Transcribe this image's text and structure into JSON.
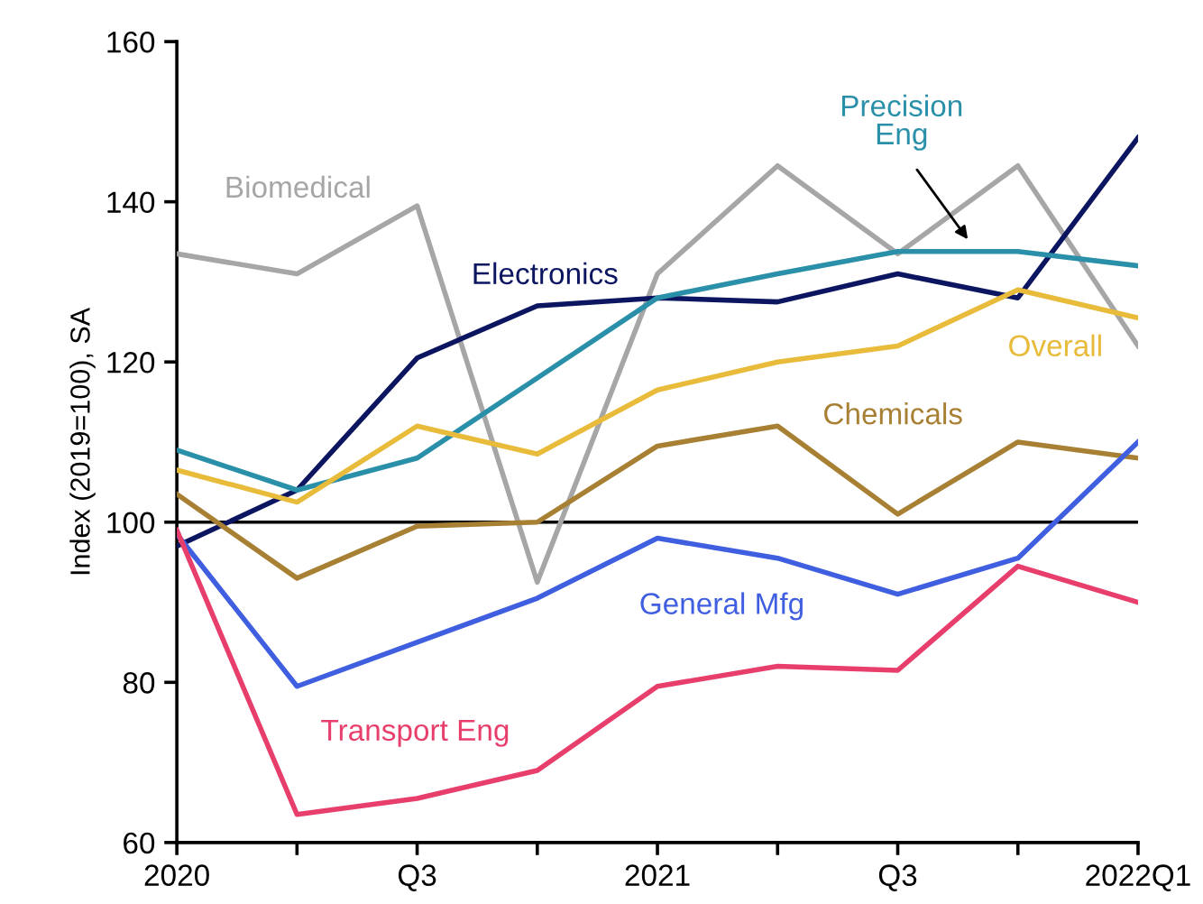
{
  "chart_data": {
    "type": "line",
    "ylabel": "Index (2019=100), SA",
    "categories": [
      "2020",
      null,
      "Q3",
      null,
      "2021",
      null,
      "Q3",
      null,
      "2022Q1"
    ],
    "series": [
      {
        "name": "Biomedical",
        "color": "#a6a6a6",
        "values": [
          133.5,
          131,
          139.5,
          92.5,
          131,
          144.5,
          133.5,
          144.5,
          122
        ]
      },
      {
        "name": "Electronics",
        "color": "#0b1560",
        "values": [
          97,
          104,
          120.5,
          127,
          128,
          127.5,
          131,
          128,
          148
        ]
      },
      {
        "name": "Precision Eng",
        "color": "#2a8fa8",
        "values": [
          109,
          104,
          108,
          118,
          128,
          131,
          133.8,
          133.8,
          132
        ]
      },
      {
        "name": "Overall",
        "color": "#e9bb3a",
        "values": [
          106.5,
          102.5,
          112,
          108.5,
          116.5,
          120,
          122,
          129,
          125.5
        ]
      },
      {
        "name": "Chemicals",
        "color": "#a88034",
        "values": [
          103.5,
          93,
          99.5,
          100,
          109.5,
          112,
          101,
          110,
          108
        ]
      },
      {
        "name": "General Mfg",
        "color": "#3f5fe0",
        "values": [
          98.5,
          79.5,
          85,
          90.5,
          98,
          95.5,
          91,
          95.5,
          110
        ]
      },
      {
        "name": "Transport Eng",
        "color": "#e83e6c",
        "values": [
          99,
          63.5,
          65.5,
          69,
          79.5,
          82,
          81.5,
          94.5,
          90
        ]
      }
    ],
    "ylim": [
      60,
      160
    ],
    "yticks": [
      60,
      80,
      100,
      120,
      140,
      160
    ],
    "ref_lines": [
      {
        "axis": "y",
        "value": 100,
        "color": "#000000"
      }
    ],
    "grid": false,
    "legend": false,
    "marker": "none",
    "line_style": "solid"
  }
}
